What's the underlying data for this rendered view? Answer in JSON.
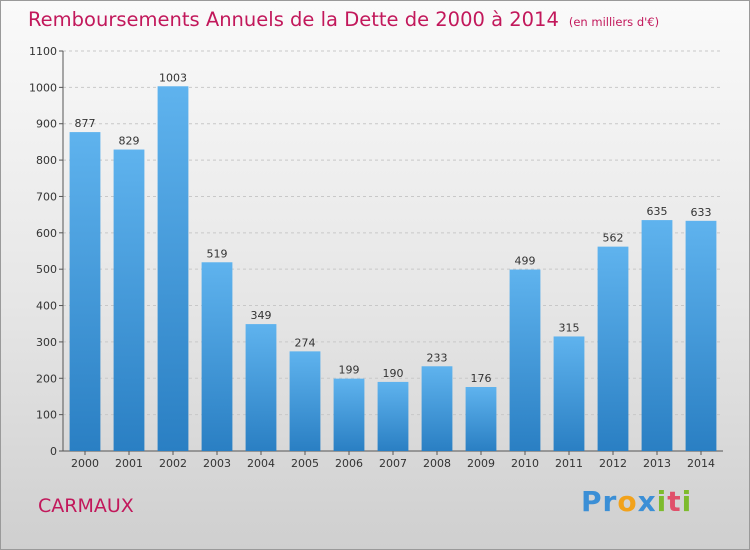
{
  "title": "Remboursements Annuels de la Dette de 2000 à 2014",
  "subtitle": "(en milliers d'€)",
  "town": "CARMAUX",
  "logo": {
    "letters": [
      {
        "ch": "P",
        "color": "#3b8fd6"
      },
      {
        "ch": "r",
        "color": "#3b8fd6"
      },
      {
        "ch": "o",
        "color": "#f2a21b"
      },
      {
        "ch": "x",
        "color": "#3b8fd6"
      },
      {
        "ch": "i",
        "color": "#7dbb2c"
      },
      {
        "ch": "t",
        "color": "#e0506a"
      },
      {
        "ch": "i",
        "color": "#7dbb2c"
      }
    ]
  },
  "colors": {
    "bar_top": "#5fb3ee",
    "bar_bottom": "#2a7fc3",
    "title": "#c2185b"
  },
  "chart_data": {
    "type": "bar",
    "title": "Remboursements Annuels de la Dette de 2000 à 2014",
    "subtitle": "(en milliers d'€)",
    "categories": [
      "2000",
      "2001",
      "2002",
      "2003",
      "2004",
      "2005",
      "2006",
      "2007",
      "2008",
      "2009",
      "2010",
      "2011",
      "2012",
      "2013",
      "2014"
    ],
    "values": [
      877,
      829,
      1003,
      519,
      349,
      274,
      199,
      190,
      233,
      176,
      499,
      315,
      562,
      635,
      633
    ],
    "value_labels": [
      "877",
      "829",
      "1003",
      "519",
      "349",
      "274",
      "199",
      "190",
      "233",
      "176",
      "499",
      "315",
      "562",
      "635",
      "633"
    ],
    "ylim": [
      0,
      1100
    ],
    "yticks": [
      0,
      100,
      200,
      300,
      400,
      500,
      600,
      700,
      800,
      900,
      1000,
      1100
    ],
    "ytick_labels": [
      "0",
      "100",
      "200",
      "300",
      "400",
      "500",
      "600",
      "700",
      "800",
      "900",
      "1000",
      "1100"
    ],
    "grid": true,
    "xlabel": "",
    "ylabel": ""
  }
}
